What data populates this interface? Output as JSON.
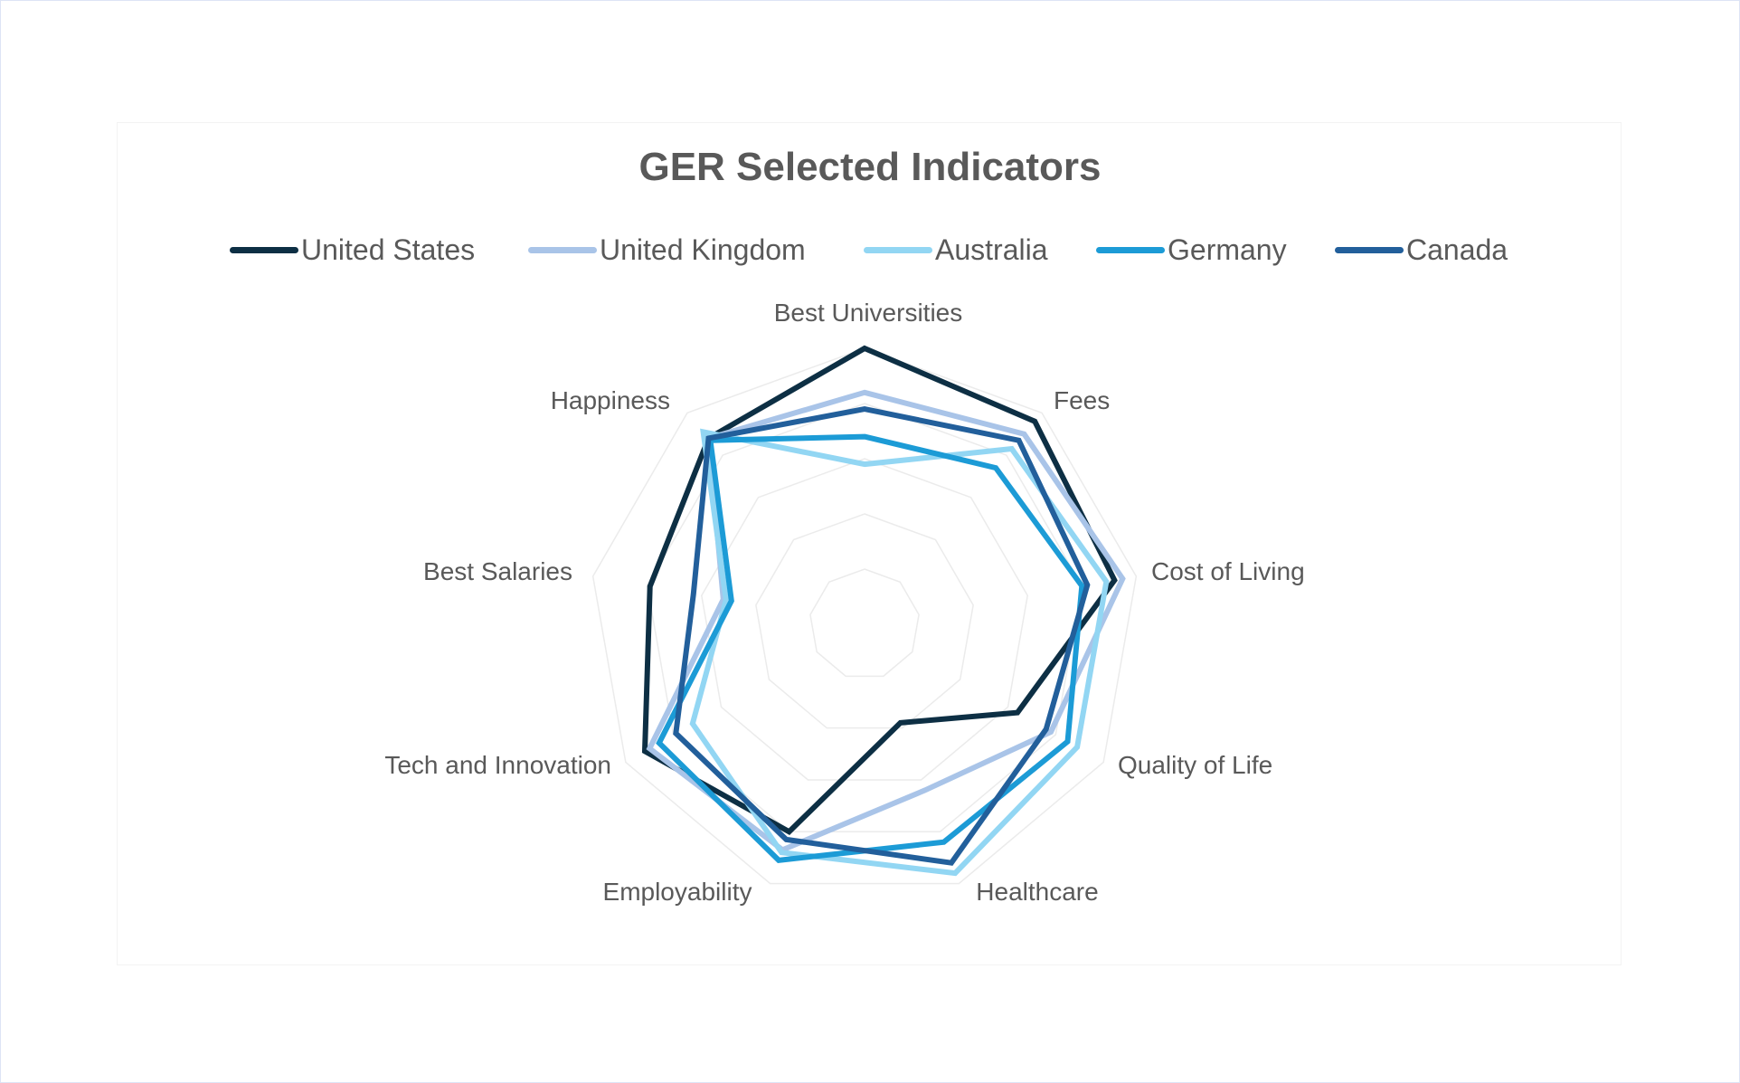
{
  "chart_data": {
    "type": "radar",
    "title": "GER Selected Indicators",
    "categories": [
      "Best Universities",
      "Fees",
      "Cost of Living",
      "Quality of Life",
      "Healthcare",
      "Employability",
      "Tech and Innovation",
      "Best Salaries",
      "Happiness"
    ],
    "rlim": [
      0,
      5
    ],
    "rings": 5,
    "grid": true,
    "legend_position": "top",
    "series": [
      {
        "name": "United States",
        "color": "#0d2f44",
        "values": [
          5.0,
          4.8,
          4.6,
          3.2,
          1.9,
          4.0,
          4.6,
          3.95,
          4.4
        ]
      },
      {
        "name": "United Kingdom",
        "color": "#a9c4e8",
        "values": [
          4.2,
          4.5,
          4.75,
          3.9,
          3.2,
          4.35,
          4.5,
          2.6,
          4.4
        ]
      },
      {
        "name": "Australia",
        "color": "#92d6f3",
        "values": [
          2.9,
          4.15,
          4.45,
          4.45,
          4.8,
          4.4,
          3.6,
          2.55,
          4.55
        ]
      },
      {
        "name": "Germany",
        "color": "#1c9bd6",
        "values": [
          3.4,
          3.7,
          4.0,
          4.25,
          4.2,
          4.55,
          4.3,
          2.45,
          4.35
        ]
      },
      {
        "name": "Canada",
        "color": "#225f9b",
        "values": [
          3.9,
          4.35,
          4.1,
          3.8,
          4.6,
          4.15,
          3.95,
          3.15,
          4.4
        ]
      }
    ]
  }
}
